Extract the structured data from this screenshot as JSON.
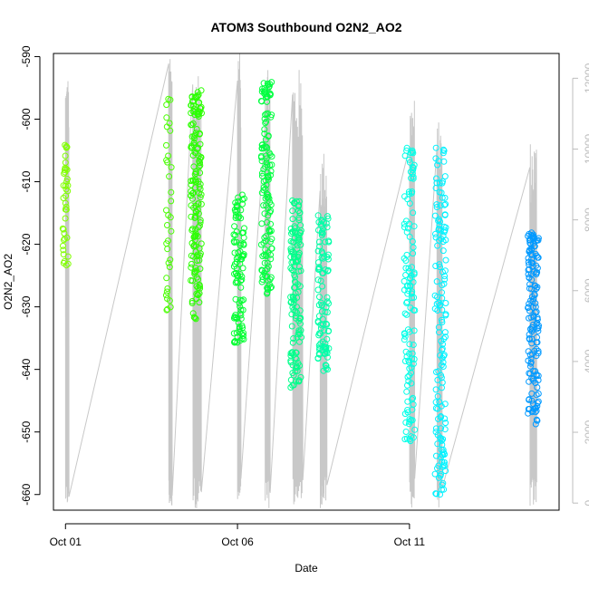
{
  "chart_data": {
    "type": "scatter",
    "title": "ATOM3 Southbound O2N2_AO2",
    "xlabel": "Date",
    "ylabel": "O2N2_AO2",
    "x_axis": {
      "type": "date",
      "lim": [
        "2015-10-01",
        "2015-10-15"
      ],
      "ticks": [
        "Oct 01",
        "Oct 06",
        "Oct 11"
      ],
      "tick_dates": [
        "2015-10-01",
        "2015-10-06",
        "2015-10-11"
      ]
    },
    "y_axis": {
      "lim": [
        -662.5,
        -589.5
      ],
      "ticks": [
        -590,
        -600,
        -610,
        -620,
        -630,
        -640,
        -650,
        -660
      ]
    },
    "y2_axis": {
      "lim": [
        -200,
        12700
      ],
      "ticks": [
        0,
        2000,
        4000,
        6000,
        8000,
        10000,
        12000
      ],
      "color": "#bdbdbd",
      "position": "right"
    },
    "grid": false,
    "legend": "none",
    "point_clusters": [
      {
        "date": "2015-10-01",
        "count": 40,
        "ymin": -624,
        "ymax": -604,
        "color": "#80ff00"
      },
      {
        "date": "2015-10-04",
        "count": 35,
        "ymin": -631,
        "ymax": -594,
        "color": "#49ff00"
      },
      {
        "date": "2015-10-04.8",
        "count": 160,
        "ymin": -632,
        "ymax": -595,
        "color": "#2bff00"
      },
      {
        "date": "2015-10-06.05",
        "count": 100,
        "ymin": -636,
        "ymax": -612,
        "color": "#00ff30"
      },
      {
        "date": "2015-10-06.85",
        "count": 140,
        "ymin": -628,
        "ymax": -593,
        "color": "#00ff3f"
      },
      {
        "date": "2015-10-07.7",
        "count": 140,
        "ymin": -643,
        "ymax": -613,
        "color": "#00ff8b"
      },
      {
        "date": "2015-10-08.5",
        "count": 100,
        "ymin": -641,
        "ymax": -615,
        "color": "#00ffa8"
      },
      {
        "date": "2015-10-11",
        "count": 120,
        "ymin": -652,
        "ymax": -604,
        "color": "#00ffe8"
      },
      {
        "date": "2015-10-11.9",
        "count": 150,
        "ymin": -660,
        "ymax": -604,
        "color": "#00f2ff"
      },
      {
        "date": "2015-10-14.6",
        "count": 150,
        "ymin": -649,
        "ymax": -618,
        "color": "#0099ff"
      }
    ],
    "secondary_series_color": "#c8c8c8",
    "secondary_segments": [
      {
        "start": "2015-10-01",
        "end": "2015-10-01.1",
        "ymax": 12200
      },
      {
        "start": "2015-10-04",
        "end": "2015-10-04.1",
        "ymax": 12600
      },
      {
        "start": "2015-10-04.7",
        "end": "2015-10-04.95",
        "ymax": 12500
      },
      {
        "start": "2015-10-06",
        "end": "2015-10-06.1",
        "ymax": 12700
      },
      {
        "start": "2015-10-06.8",
        "end": "2015-10-06.95",
        "ymax": 12700
      },
      {
        "start": "2015-10-07.6",
        "end": "2015-10-07.9",
        "ymax": 12300
      },
      {
        "start": "2015-10-08.4",
        "end": "2015-10-08.6",
        "ymax": 10000
      },
      {
        "start": "2015-10-11",
        "end": "2015-10-11.15",
        "ymax": 11500
      },
      {
        "start": "2015-10-11.8",
        "end": "2015-10-11.95",
        "ymax": 10800
      },
      {
        "start": "2015-10-14.5",
        "end": "2015-10-14.7",
        "ymax": 10300
      }
    ]
  }
}
